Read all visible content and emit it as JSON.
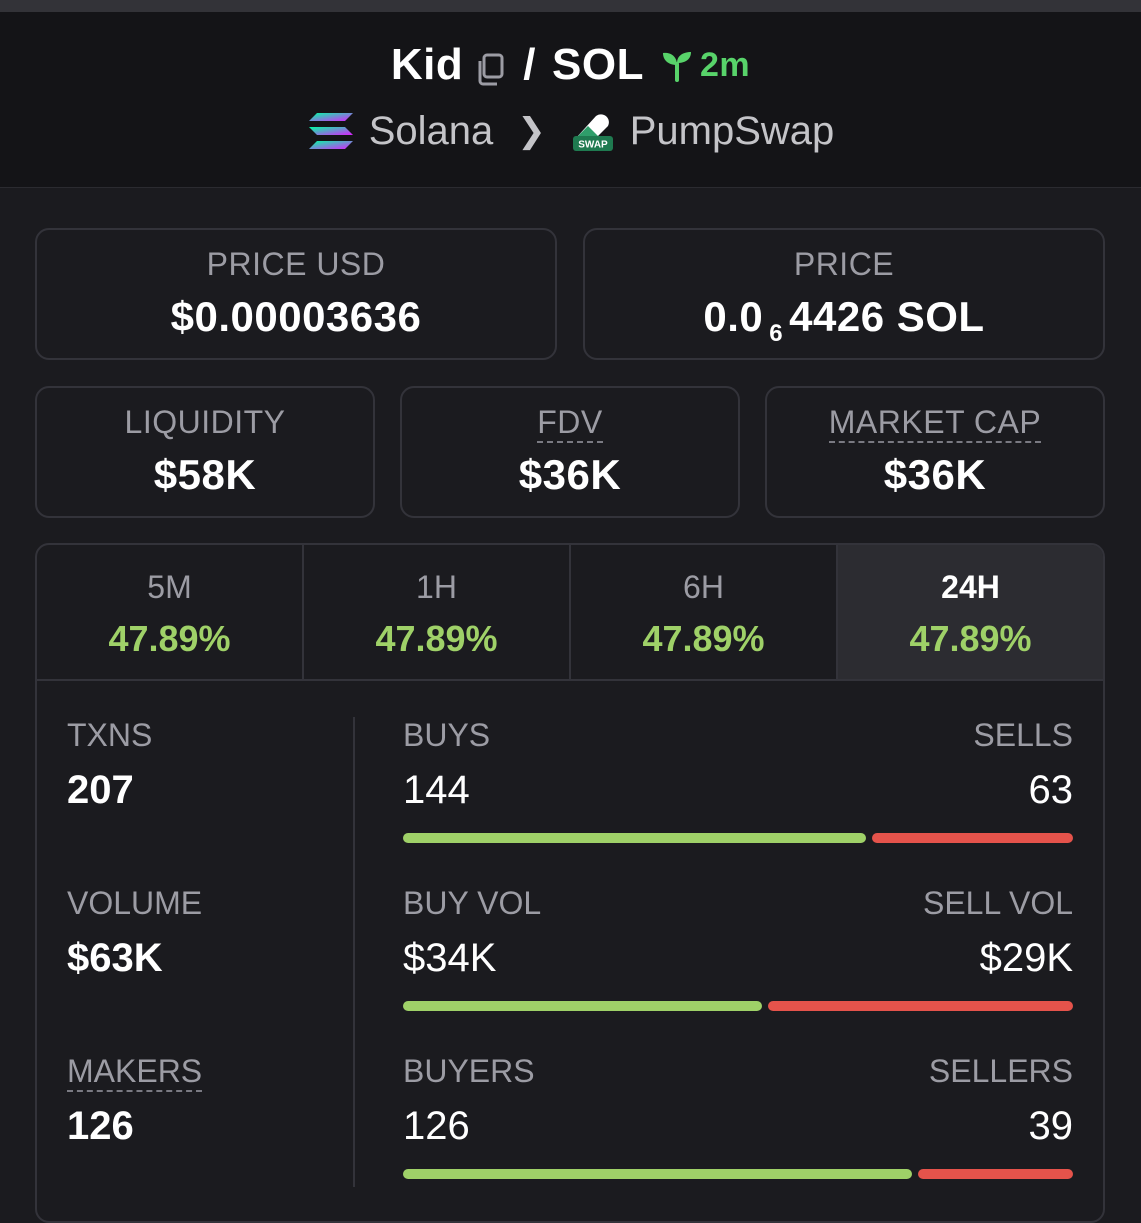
{
  "header": {
    "token": "Kid",
    "slash": "/",
    "quote": "SOL",
    "age": "2m",
    "chain": "Solana",
    "dex": "PumpSwap",
    "dex_icon_text": "SWAP"
  },
  "price_usd": {
    "label": "PRICE USD",
    "value": "$0.00003636"
  },
  "price_native": {
    "label": "PRICE",
    "prefix": "0.0",
    "zeros": "6",
    "suffix": "4426 SOL"
  },
  "liquidity": {
    "label": "LIQUIDITY",
    "value": "$58K"
  },
  "fdv": {
    "label": "FDV",
    "value": "$36K"
  },
  "market_cap": {
    "label": "MARKET CAP",
    "value": "$36K"
  },
  "tabs": [
    {
      "label": "5M",
      "change": "47.89%"
    },
    {
      "label": "1H",
      "change": "47.89%"
    },
    {
      "label": "6H",
      "change": "47.89%"
    },
    {
      "label": "24H",
      "change": "47.89%"
    }
  ],
  "active_tab": "24H",
  "colors": {
    "positive": "#9fd168",
    "negative": "#e5534b",
    "age": "#58d36a"
  },
  "metrics": [
    {
      "label": "TXNS",
      "value": "207"
    },
    {
      "label": "VOLUME",
      "value": "$63K"
    },
    {
      "label": "MAKERS",
      "value": "126"
    }
  ],
  "ratios": [
    {
      "left_label": "BUYS",
      "right_label": "SELLS",
      "left_value": "144",
      "right_value": "63",
      "buy_fraction": 0.696
    },
    {
      "left_label": "BUY VOL",
      "right_label": "SELL VOL",
      "left_value": "$34K",
      "right_value": "$29K",
      "buy_fraction": 0.54
    },
    {
      "left_label": "BUYERS",
      "right_label": "SELLERS",
      "left_value": "126",
      "right_value": "39",
      "buy_fraction": 0.764
    }
  ]
}
